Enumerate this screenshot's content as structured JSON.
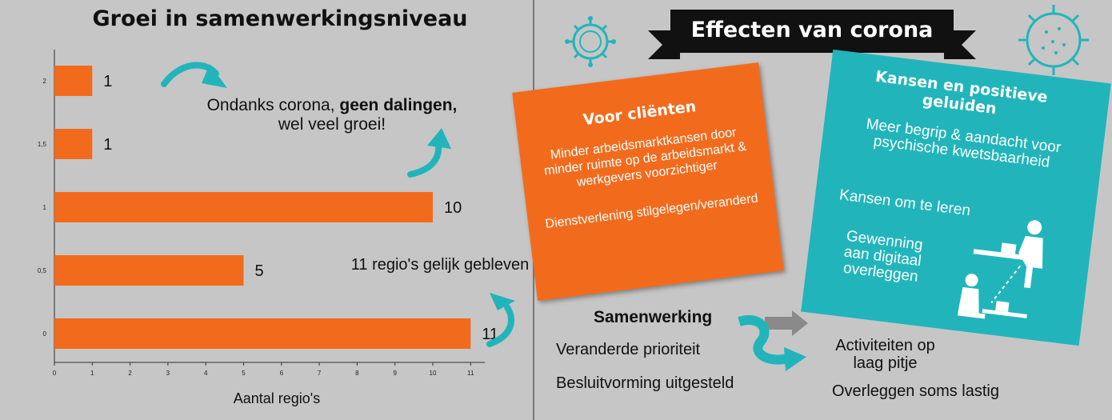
{
  "left": {
    "title": "Groei in samenwerkingsniveau",
    "annotation_growth_pre": "Ondanks corona,",
    "annotation_growth_bold": "geen dalingen,",
    "annotation_growth_post": "wel veel groei!",
    "annotation_equal": "11 regio's gelijk gebleven"
  },
  "chart_data": {
    "type": "bar",
    "orientation": "horizontal",
    "title": "Groei in samenwerkingsniveau",
    "xlabel": "Aantal regio's",
    "ylabel": "",
    "categories": [
      "2",
      "1,5",
      "1",
      "0,5",
      "0"
    ],
    "values": [
      1,
      1,
      10,
      5,
      11
    ],
    "data_labels": [
      "1",
      "1",
      "10",
      "5",
      "11"
    ],
    "xlim": [
      0,
      11
    ],
    "xticks": [
      "0",
      "1",
      "2",
      "3",
      "4",
      "5",
      "6",
      "7",
      "8",
      "9",
      "10",
      "11"
    ],
    "grid": false,
    "bar_color": "#f26b1d"
  },
  "right": {
    "banner_title": "Effecten van corona",
    "clients": {
      "title": "Voor cliënten",
      "item1": "Minder arbeidsmarktkansen door minder ruimte op de arbeidsmarkt & werkgevers voorzichtiger",
      "item2": "Dienstverlening stilgelegen/veranderd"
    },
    "positive": {
      "title": "Kansen en positieve geluiden",
      "item1": "Meer begrip & aandacht voor psychische kwetsbaarheid",
      "item2": "Kansen om te leren",
      "item3": "Gewenning aan digitaal overleggen"
    },
    "cooperation": {
      "title": "Samenwerking",
      "item1": "Veranderde prioriteit",
      "item2": "Besluitvorming uitgesteld",
      "item3": "Activiteiten op laag pitje",
      "item4": "Overleggen soms lastig"
    }
  },
  "colors": {
    "background": "#c6c6c6",
    "orange": "#f26b1d",
    "teal": "#21b5bb",
    "banner": "#111111"
  },
  "icons": [
    "virus-icon",
    "curved-arrow-icon",
    "person-laptop-icon",
    "child-laptop-icon"
  ]
}
